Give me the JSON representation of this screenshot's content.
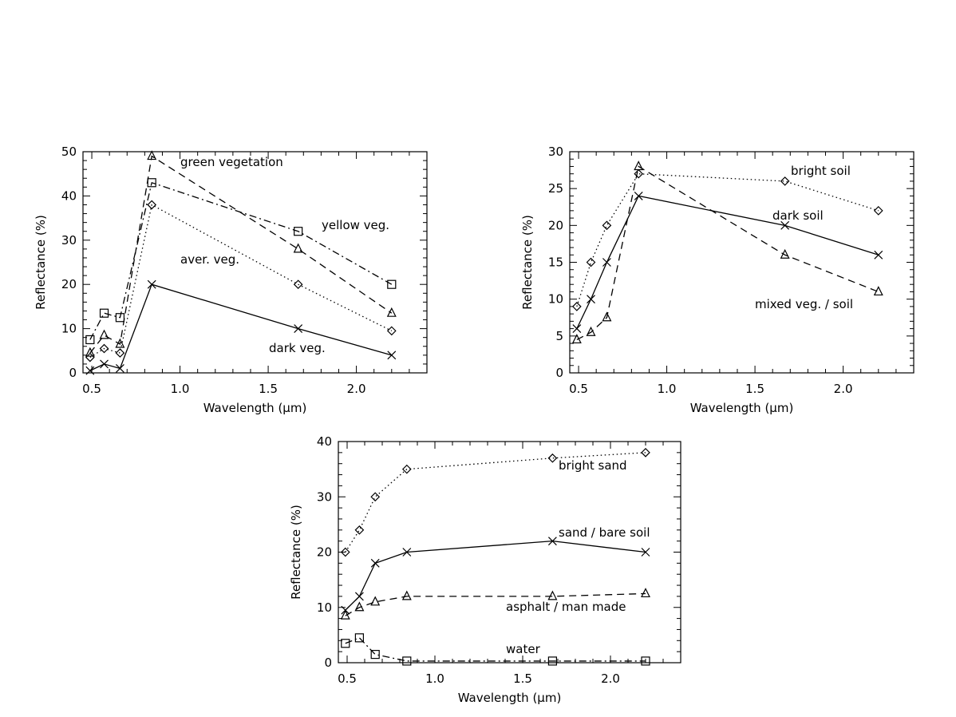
{
  "chart_data": [
    {
      "type": "line",
      "xlabel": "Wavelength (μm)",
      "ylabel": "Reflectance (%)",
      "xlim": [
        0.45,
        2.4
      ],
      "ylim": [
        0,
        50
      ],
      "xticks": [
        0.5,
        1.0,
        1.5,
        2.0
      ],
      "xtick_labels": [
        "0.5",
        "1.0",
        "1.5",
        "2.0"
      ],
      "yticks": [
        0,
        10,
        20,
        30,
        40,
        50
      ],
      "ytick_labels": [
        "0",
        "10",
        "20",
        "30",
        "40",
        "50"
      ],
      "series": [
        {
          "name": "green vegetation",
          "marker": "triangle",
          "dash": "dashed",
          "x": [
            0.49,
            0.57,
            0.66,
            0.84,
            1.67,
            2.2
          ],
          "y": [
            4.5,
            8.5,
            6.5,
            49,
            28,
            13.5
          ]
        },
        {
          "name": "yellow veg.",
          "marker": "square",
          "dash": "dashdot",
          "x": [
            0.49,
            0.57,
            0.66,
            0.84,
            1.67,
            2.2
          ],
          "y": [
            7.5,
            13.5,
            12.5,
            43,
            32,
            20
          ]
        },
        {
          "name": "aver. veg.",
          "marker": "diamond",
          "dash": "dotted",
          "x": [
            0.49,
            0.57,
            0.66,
            0.84,
            1.67,
            2.2
          ],
          "y": [
            3.5,
            5.5,
            4.5,
            38,
            20,
            9.5
          ]
        },
        {
          "name": "dark veg.",
          "marker": "x",
          "dash": "solid",
          "x": [
            0.49,
            0.57,
            0.66,
            0.84,
            1.67,
            2.2
          ],
          "y": [
            0.5,
            2,
            1,
            20,
            10,
            4
          ]
        }
      ]
    },
    {
      "type": "line",
      "xlabel": "Wavelength (μm)",
      "ylabel": "Reflectance (%)",
      "xlim": [
        0.45,
        2.4
      ],
      "ylim": [
        0,
        30
      ],
      "xticks": [
        0.5,
        1.0,
        1.5,
        2.0
      ],
      "xtick_labels": [
        "0.5",
        "1.0",
        "1.5",
        "2.0"
      ],
      "yticks": [
        0,
        5,
        10,
        15,
        20,
        25,
        30
      ],
      "ytick_labels": [
        "0",
        "5",
        "10",
        "15",
        "20",
        "25",
        "30"
      ],
      "series": [
        {
          "name": "bright soil",
          "marker": "diamond",
          "dash": "dotted",
          "x": [
            0.49,
            0.57,
            0.66,
            0.84,
            1.67,
            2.2
          ],
          "y": [
            9,
            15,
            20,
            27,
            26,
            22
          ]
        },
        {
          "name": "dark soil",
          "marker": "x",
          "dash": "solid",
          "x": [
            0.49,
            0.57,
            0.66,
            0.84,
            1.67,
            2.2
          ],
          "y": [
            6,
            10,
            15,
            24,
            20,
            16
          ]
        },
        {
          "name": "mixed veg. / soil",
          "marker": "triangle",
          "dash": "dashed",
          "x": [
            0.49,
            0.57,
            0.66,
            0.84,
            1.67,
            2.2
          ],
          "y": [
            4.5,
            5.5,
            7.5,
            28,
            16,
            11
          ]
        }
      ]
    },
    {
      "type": "line",
      "xlabel": "Wavelength (μm)",
      "ylabel": "Reflectance (%)",
      "xlim": [
        0.45,
        2.4
      ],
      "ylim": [
        0,
        40
      ],
      "xticks": [
        0.5,
        1.0,
        1.5,
        2.0
      ],
      "xtick_labels": [
        "0.5",
        "1.0",
        "1.5",
        "2.0"
      ],
      "yticks": [
        0,
        10,
        20,
        30,
        40
      ],
      "ytick_labels": [
        "0",
        "10",
        "20",
        "30",
        "40"
      ],
      "series": [
        {
          "name": "bright sand",
          "marker": "diamond",
          "dash": "dotted",
          "x": [
            0.49,
            0.57,
            0.66,
            0.84,
            1.67,
            2.2
          ],
          "y": [
            20,
            24,
            30,
            35,
            37,
            38
          ]
        },
        {
          "name": "sand / bare soil",
          "marker": "x",
          "dash": "solid",
          "x": [
            0.49,
            0.57,
            0.66,
            0.84,
            1.67,
            2.2
          ],
          "y": [
            9.5,
            12,
            18,
            20,
            22,
            20
          ]
        },
        {
          "name": "asphalt / man made",
          "marker": "triangle",
          "dash": "dashed",
          "x": [
            0.49,
            0.57,
            0.66,
            0.84,
            1.67,
            2.2
          ],
          "y": [
            8.5,
            10,
            11,
            12,
            12,
            12.5
          ]
        },
        {
          "name": "water",
          "marker": "square",
          "dash": "dashdot",
          "x": [
            0.49,
            0.57,
            0.66,
            0.84,
            1.67,
            2.2
          ],
          "y": [
            3.5,
            4.5,
            1.5,
            0.3,
            0.3,
            0.3
          ]
        }
      ]
    }
  ]
}
